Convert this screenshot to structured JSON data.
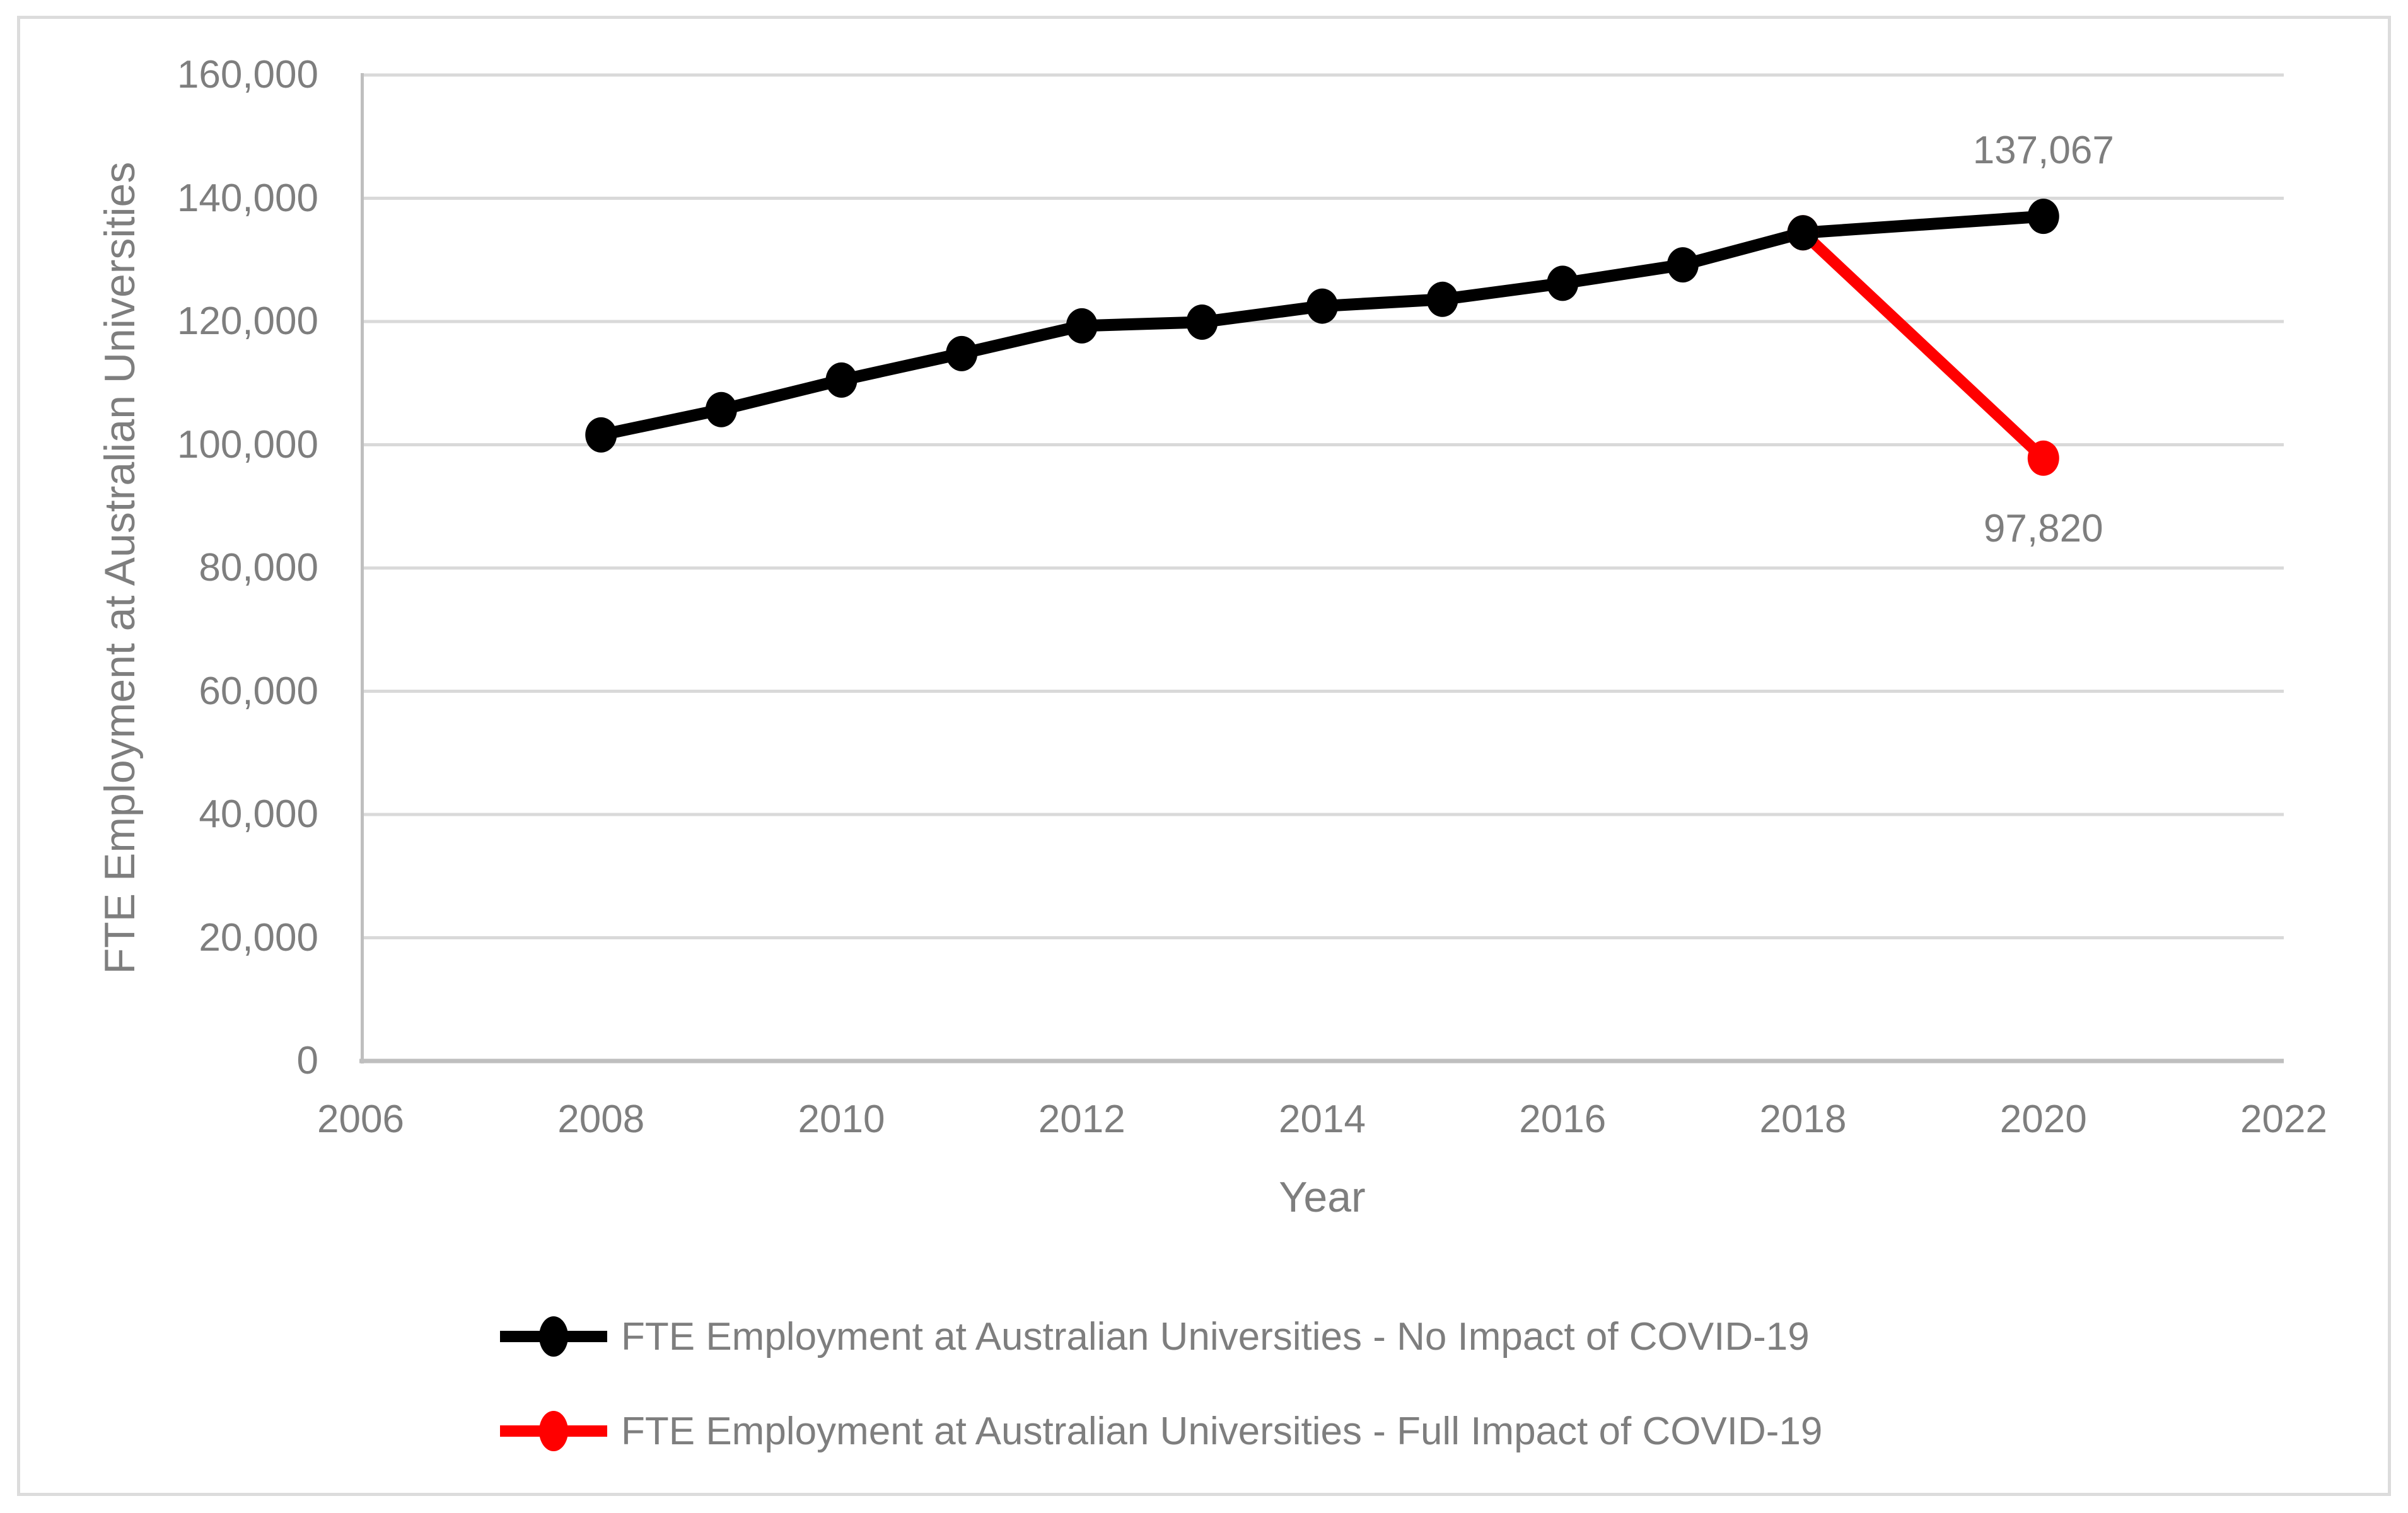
{
  "page": {
    "background": "#ffffff",
    "border_color": "#DCDCDC"
  },
  "chart_data": {
    "type": "line",
    "title": "",
    "xlabel": "Year",
    "ylabel": "FTE Employment at Australian Universities",
    "xlim": [
      2006,
      2022
    ],
    "ylim": [
      0,
      160000
    ],
    "x_ticks": [
      2006,
      2008,
      2010,
      2012,
      2014,
      2016,
      2018,
      2020,
      2022
    ],
    "x_tick_labels": [
      "2006",
      "2008",
      "2010",
      "2012",
      "2014",
      "2016",
      "2018",
      "2020",
      "2022"
    ],
    "y_ticks": [
      0,
      20000,
      40000,
      60000,
      80000,
      100000,
      120000,
      140000,
      160000
    ],
    "y_tick_labels": [
      "0",
      "20,000",
      "40,000",
      "60,000",
      "80,000",
      "100,000",
      "120,000",
      "140,000",
      "160,000"
    ],
    "grid": "horizontal-only",
    "grid_color": "#D9D9D9",
    "axis_color": "#BFBFBF",
    "text_color": "#7E7E7E",
    "legend_position": "bottom",
    "series": [
      {
        "name": "FTE Employment at Australian Universities - No Impact of COVID-19",
        "color": "#000000",
        "line_width": 19,
        "x": [
          2008,
          2009,
          2010,
          2011,
          2012,
          2013,
          2014,
          2015,
          2016,
          2017,
          2018,
          2020
        ],
        "y": [
          101600,
          105700,
          110500,
          114800,
          119300,
          119900,
          122500,
          123600,
          126200,
          129200,
          134400,
          137067
        ]
      },
      {
        "name": "FTE Employment at Australian Universities - Full Impact of COVID-19",
        "color": "#FF0000",
        "line_width": 18,
        "x": [
          2018,
          2020
        ],
        "y": [
          134400,
          97820
        ]
      }
    ],
    "data_labels": [
      {
        "text": "137,067",
        "x": 2020,
        "y": 137067,
        "placement": "above"
      },
      {
        "text": "97,820",
        "x": 2020,
        "y": 97820,
        "placement": "below"
      }
    ]
  }
}
